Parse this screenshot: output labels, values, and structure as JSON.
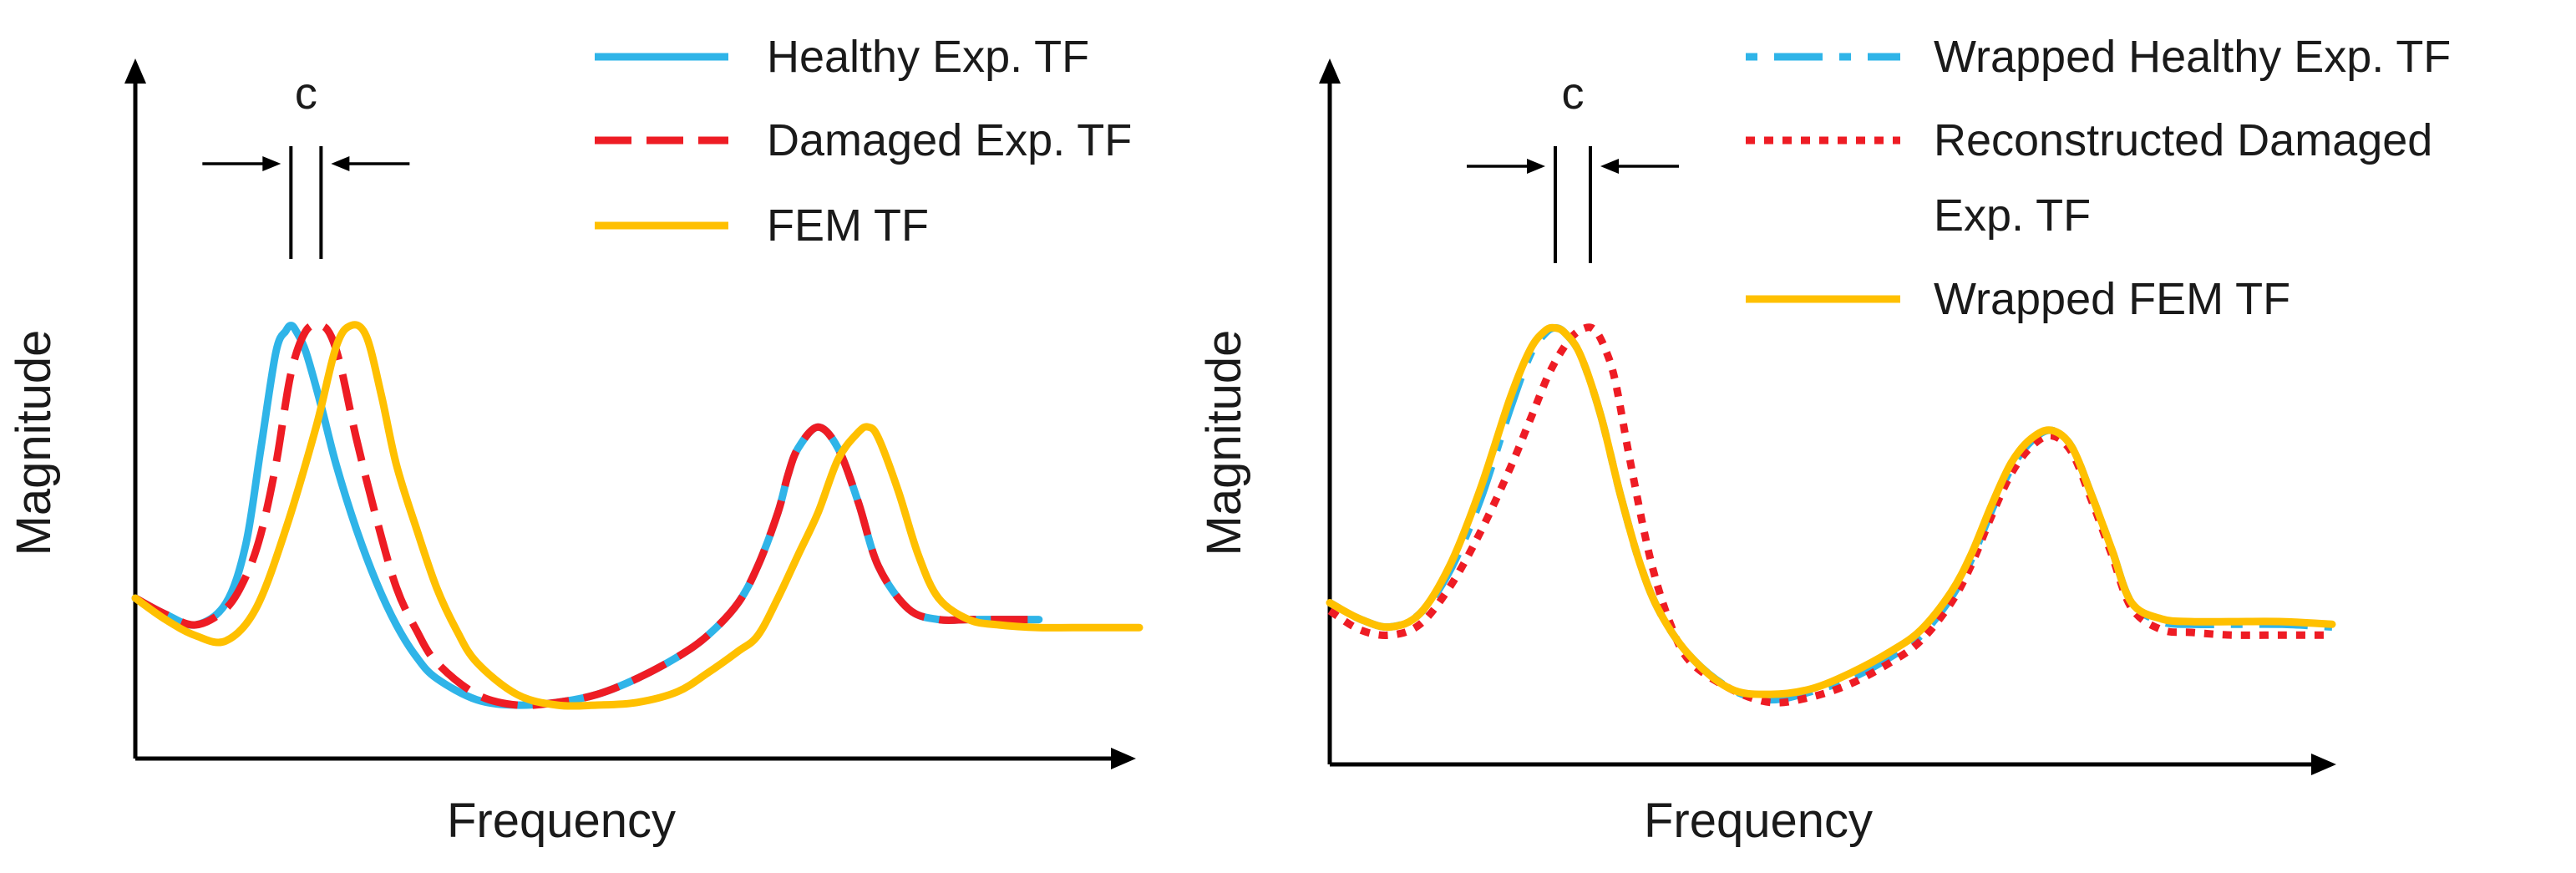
{
  "colors": {
    "healthy": "#2fb4e8",
    "damaged": "#ee1c24",
    "fem": "#ffc000",
    "axis": "#000000"
  },
  "chart_data": [
    {
      "type": "line",
      "title": "",
      "xlabel": "Frequency",
      "ylabel": "Magnitude",
      "xlim": [
        0,
        100
      ],
      "ylim": [
        0,
        100
      ],
      "grid": false,
      "legend_position": "top-right",
      "shift_marker": {
        "label": "c",
        "x1": 15.5,
        "x2": 18.5,
        "note": "arrows pointing inward toward the gap"
      },
      "series": [
        {
          "name": "Healthy Exp. TF",
          "color": "#2fb4e8",
          "style": "solid",
          "x": [
            0,
            3,
            6,
            9,
            11,
            12.5,
            14,
            15,
            15.5,
            16,
            17,
            18.5,
            20,
            22,
            24,
            26,
            28,
            30,
            34,
            38,
            42,
            46,
            50,
            54,
            57,
            60,
            62,
            64,
            65,
            66,
            68,
            70,
            72,
            74,
            77,
            80,
            83,
            86,
            90
          ],
          "y": [
            30,
            27,
            25,
            29,
            40,
            58,
            76,
            80,
            81,
            80,
            76,
            66,
            55,
            43,
            33,
            25,
            19,
            15,
            11,
            10,
            10.5,
            12,
            15,
            19,
            23,
            29,
            36,
            46,
            53,
            58,
            62,
            58,
            48,
            36,
            28,
            26,
            26,
            26,
            26
          ]
        },
        {
          "name": "Damaged Exp. TF",
          "color": "#ee1c24",
          "style": "dashed",
          "x": [
            0,
            3,
            6,
            9,
            11,
            12.5,
            14,
            15.5,
            17,
            18.5,
            19.5,
            20.5,
            22,
            24,
            26,
            28,
            30,
            34,
            38,
            42,
            46,
            50,
            54,
            57,
            60,
            62,
            64,
            65,
            66,
            68,
            70,
            72,
            74,
            77,
            80,
            83,
            86,
            90
          ],
          "y": [
            30,
            27,
            25,
            28,
            34,
            42,
            55,
            72,
            80,
            81,
            79,
            73,
            60,
            45,
            32,
            24,
            18,
            12,
            10,
            10.5,
            12,
            15,
            19,
            23,
            29,
            36,
            46,
            53,
            58,
            62,
            58,
            48,
            36,
            28,
            26,
            26,
            26,
            26
          ]
        },
        {
          "name": "FEM TF",
          "color": "#ffc000",
          "style": "solid",
          "x": [
            0,
            3,
            6,
            9,
            12,
            15,
            18,
            20,
            21.5,
            23,
            24.5,
            26,
            28,
            30,
            32,
            34,
            38,
            42,
            46,
            50,
            54,
            57,
            60,
            62,
            64,
            66,
            68,
            70,
            72,
            73,
            74,
            76,
            78,
            80,
            83,
            86,
            90,
            95,
            100
          ],
          "y": [
            30,
            26,
            23,
            22,
            28,
            43,
            62,
            77,
            81,
            79,
            68,
            55,
            43,
            32,
            24,
            18,
            12,
            10,
            10,
            10.5,
            12.5,
            16,
            20,
            23,
            30,
            38,
            46,
            56,
            61,
            62,
            60,
            50,
            38,
            30,
            26,
            25,
            24.5,
            24.5,
            24.5
          ]
        }
      ]
    },
    {
      "type": "line",
      "title": "",
      "xlabel": "Frequency",
      "ylabel": "Magnitude",
      "xlim": [
        0,
        100
      ],
      "ylim": [
        0,
        100
      ],
      "grid": false,
      "legend_position": "top-right",
      "shift_marker": {
        "label": "c",
        "x1": 22.5,
        "x2": 26,
        "note": "arrows pointing inward toward the gap"
      },
      "series": [
        {
          "name": "Wrapped Healthy Exp. TF",
          "color": "#2fb4e8",
          "style": "dash-dot",
          "x": [
            0,
            3,
            6,
            9,
            12,
            15,
            18,
            20,
            21.5,
            22.5,
            23.5,
            25,
            27,
            29,
            31,
            33,
            36,
            40,
            44,
            48,
            52,
            56,
            59,
            62,
            64,
            66,
            68,
            70,
            72,
            74,
            76,
            78,
            80,
            83,
            86,
            90,
            95,
            100
          ],
          "y": [
            30,
            27,
            25.5,
            28,
            36,
            49,
            66,
            76,
            80,
            81,
            80,
            76,
            65,
            50,
            37,
            28,
            20,
            14,
            12,
            13.5,
            16,
            20,
            24,
            31,
            38,
            47,
            55,
            60,
            62,
            59,
            50,
            40,
            30,
            26.5,
            26,
            26,
            26,
            25.5
          ]
        },
        {
          "name": "Reconstructed Damaged Exp. TF",
          "color": "#ee1c24",
          "style": "dotted",
          "x": [
            0,
            3,
            6,
            9,
            12,
            15,
            18,
            20,
            22,
            24,
            25.5,
            26.5,
            27.5,
            28.5,
            30,
            32,
            34,
            36,
            40,
            44,
            48,
            52,
            56,
            59,
            62,
            64,
            66,
            68,
            70,
            72,
            74,
            76,
            78,
            80,
            83,
            86,
            90,
            95,
            100
          ],
          "y": [
            28.5,
            25,
            24,
            26,
            33,
            43,
            55,
            64,
            73,
            79,
            81,
            80.5,
            77,
            71,
            56,
            38,
            26,
            19,
            14,
            11.5,
            12.5,
            15,
            19,
            23,
            30,
            37,
            46,
            54,
            59,
            61,
            58,
            49,
            39,
            29,
            25,
            24.5,
            24,
            24,
            24
          ]
        },
        {
          "name": "Wrapped FEM TF",
          "color": "#ffc000",
          "style": "solid",
          "x": [
            0,
            3,
            6,
            9,
            12,
            15,
            18,
            20,
            21.5,
            22.5,
            23.5,
            25,
            27,
            29,
            31,
            33,
            36,
            40,
            44,
            48,
            52,
            56,
            59,
            62,
            64,
            66,
            68,
            70,
            72,
            74,
            76,
            78,
            80,
            83,
            86,
            90,
            95,
            100
          ],
          "y": [
            30,
            27,
            25.5,
            28,
            37,
            51,
            68,
            77,
            80.5,
            81,
            80,
            76,
            65,
            50,
            37,
            28,
            20,
            14,
            13,
            14,
            17,
            21,
            25,
            32,
            39,
            48,
            56,
            60.5,
            62,
            59,
            50,
            40,
            30,
            27,
            26.5,
            26.5,
            26.5,
            26
          ]
        }
      ]
    }
  ]
}
